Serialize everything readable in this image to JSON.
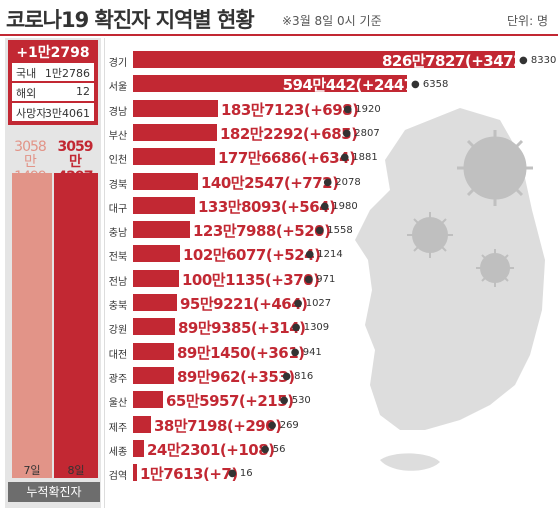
{
  "header": {
    "title": "코로나19 확진자 지역별 현황",
    "subtitle": "※3월 8일 0시 기준",
    "unit": "단위: 명"
  },
  "summary": {
    "new_total": "+1만2798",
    "breakdown": [
      {
        "label": "국내",
        "value": "1만2786"
      },
      {
        "label": "해외",
        "value": "12"
      },
      {
        "label": "사망자",
        "value": "3만4061"
      }
    ]
  },
  "cumulative": {
    "left_label": [
      "3058만",
      "1499"
    ],
    "right_label": [
      "3059만",
      "4297"
    ],
    "days": [
      "7일",
      "8일"
    ],
    "caption": "누적확진자",
    "values": [
      30581499,
      30594297
    ]
  },
  "colors": {
    "accent": "#c22833",
    "pale": "#e29488",
    "muted": "#6d6d6d"
  },
  "chart_data": {
    "type": "bar",
    "orientation": "horizontal",
    "categories": [
      "경기",
      "서울",
      "경남",
      "부산",
      "인천",
      "경북",
      "대구",
      "충남",
      "전북",
      "전남",
      "충북",
      "강원",
      "대전",
      "광주",
      "울산",
      "제주",
      "세종",
      "검역"
    ],
    "values": [
      8267827,
      5940442,
      1837123,
      1822292,
      1776686,
      1402547,
      1338093,
      1237988,
      1026077,
      1001135,
      959221,
      899385,
      891450,
      890962,
      655957,
      387198,
      242301,
      17613
    ],
    "value_labels": [
      "826만7827",
      "594만442",
      "183만7123",
      "182만2292",
      "177만6686",
      "140만2547",
      "133만8093",
      "123만7988",
      "102만6077",
      "100만1135",
      "95만9221",
      "89만9385",
      "89만1450",
      "89만962",
      "65만5957",
      "38만7198",
      "24만2301",
      "1만7613"
    ],
    "increases": [
      "(+3472)",
      "(+2447)",
      "(+698)",
      "(+685)",
      "(+634)",
      "(+772)",
      "(+564)",
      "(+520)",
      "(+524)",
      "(+370)",
      "(+464)",
      "(+314)",
      "(+361)",
      "(+353)",
      "(+215)",
      "(+290)",
      "(+108)",
      "(+7)"
    ],
    "deaths": [
      "8330",
      "6358",
      "1920",
      "2807",
      "1881",
      "2078",
      "1980",
      "1558",
      "1214",
      "971",
      "1027",
      "1309",
      "941",
      "816",
      "530",
      "269",
      "56",
      "16"
    ]
  }
}
